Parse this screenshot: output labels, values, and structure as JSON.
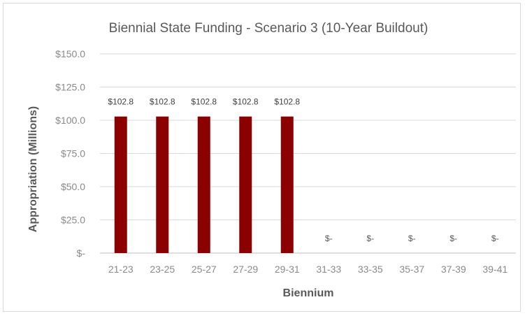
{
  "chart_data": {
    "type": "bar",
    "title": "Biennial State Funding - Scenario 3 (10-Year Buildout)",
    "xlabel": "Biennium",
    "ylabel": "Appropriation (Millions)",
    "categories": [
      "21-23",
      "23-25",
      "25-27",
      "27-29",
      "29-31",
      "31-33",
      "33-35",
      "35-37",
      "37-39",
      "39-41"
    ],
    "values": [
      102.8,
      102.8,
      102.8,
      102.8,
      102.8,
      0,
      0,
      0,
      0,
      0
    ],
    "data_labels": [
      "$102.8",
      "$102.8",
      "$102.8",
      "$102.8",
      "$102.8",
      "$-",
      "$-",
      "$-",
      "$-",
      "$-"
    ],
    "y_ticks": [
      0,
      25,
      50,
      75,
      100,
      125,
      150
    ],
    "y_tick_labels": [
      "$-",
      "$25.0",
      "$50.0",
      "$75.0",
      "$100.0",
      "$125.0",
      "$150.0"
    ],
    "ylim": [
      0,
      150
    ],
    "grid": true,
    "bar_color": "#8b0000"
  }
}
